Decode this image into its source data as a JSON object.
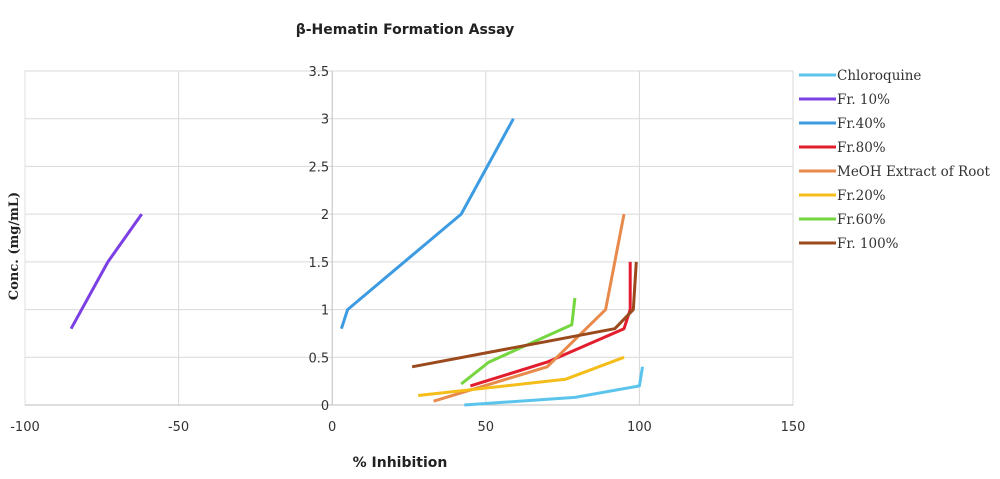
{
  "chart_data": {
    "type": "line",
    "title": "β-Hematin Formation Assay",
    "xlabel": "% Inhibition",
    "ylabel": "Conc. (mg/mL)",
    "xlim": [
      -100,
      150
    ],
    "ylim": [
      0,
      3.5
    ],
    "x_ticks": [
      -100,
      -50,
      0,
      50,
      100,
      150
    ],
    "y_ticks": [
      0,
      0.5,
      1,
      1.5,
      2,
      2.5,
      3,
      3.5
    ],
    "x_tick_labels": [
      "-100",
      "-50",
      "0",
      "50",
      "100",
      "150"
    ],
    "y_tick_labels": [
      "0",
      "0.5",
      "1",
      "1.5",
      "2",
      "2.5",
      "3",
      "3.5"
    ],
    "grid": true,
    "legend_position": "right",
    "series": [
      {
        "name": "Chloroquine",
        "color": "#5bc4ec",
        "points": [
          [
            43,
            0
          ],
          [
            79,
            0.08
          ],
          [
            100,
            0.2
          ],
          [
            101,
            0.4
          ]
        ]
      },
      {
        "name": "Fr. 10%",
        "color": "#7b3fe4",
        "points": [
          [
            -85,
            0.8
          ],
          [
            -73,
            1.5
          ],
          [
            -62,
            2
          ]
        ]
      },
      {
        "name": "Fr.40%",
        "color": "#3d9be2",
        "points": [
          [
            3,
            0.8
          ],
          [
            5,
            1
          ],
          [
            42,
            2
          ],
          [
            59,
            3
          ]
        ]
      },
      {
        "name": "Fr.80%",
        "color": "#e21d2d",
        "points": [
          [
            45,
            0.2
          ],
          [
            70,
            0.45
          ],
          [
            95,
            0.8
          ],
          [
            97,
            1
          ],
          [
            97,
            1.5
          ]
        ]
      },
      {
        "name": "MeOH Extract of Root",
        "color": "#e88a4c",
        "points": [
          [
            33,
            0.04
          ],
          [
            70,
            0.4
          ],
          [
            89,
            1
          ],
          [
            92,
            1.5
          ],
          [
            95,
            2
          ]
        ]
      },
      {
        "name": "Fr.20%",
        "color": "#f5bd1a",
        "points": [
          [
            28,
            0.1
          ],
          [
            76,
            0.27
          ],
          [
            95,
            0.5
          ]
        ]
      },
      {
        "name": "Fr.60%",
        "color": "#75d640",
        "points": [
          [
            42,
            0.22
          ],
          [
            51,
            0.45
          ],
          [
            78,
            0.84
          ],
          [
            79,
            1.12
          ]
        ]
      },
      {
        "name": "Fr. 100%",
        "color": "#9a4a1d",
        "points": [
          [
            26,
            0.4
          ],
          [
            92,
            0.8
          ],
          [
            98,
            1
          ],
          [
            99,
            1.5
          ]
        ]
      }
    ]
  }
}
